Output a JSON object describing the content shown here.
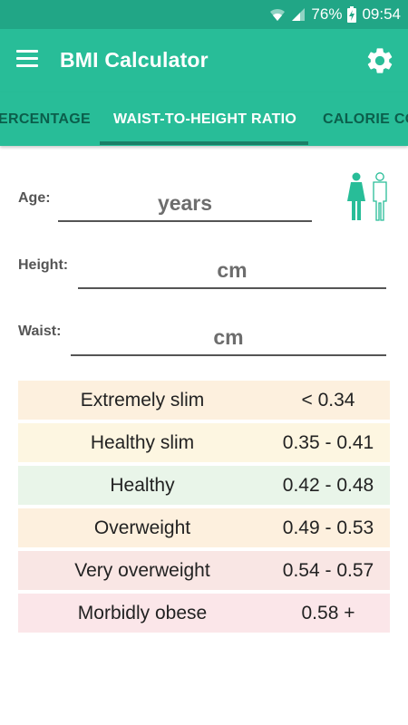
{
  "status_bar": {
    "battery": "76%",
    "time": "09:54"
  },
  "app_bar": {
    "title": "BMI Calculator"
  },
  "tabs": [
    {
      "label": "BODY FAT PERCENTAGE",
      "visible_label": "ERCENTAGE"
    },
    {
      "label": "WAIST-TO-HEIGHT RATIO",
      "visible_label": "WAIST-TO-HEIGHT RATIO",
      "selected": true
    },
    {
      "label": "CALORIE CO",
      "visible_label": "CALORIE CO"
    }
  ],
  "form": {
    "age": {
      "label": "Age:",
      "placeholder": "years",
      "value": ""
    },
    "height": {
      "label": "Height:",
      "placeholder": "cm",
      "value": ""
    },
    "waist": {
      "label": "Waist:",
      "placeholder": "cm",
      "value": ""
    }
  },
  "ratio_table": [
    {
      "category": "Extremely slim",
      "range": "< 0.34",
      "color": "#fdf0de"
    },
    {
      "category": "Healthy slim",
      "range": "0.35 - 0.41",
      "color": "#fdf6e1"
    },
    {
      "category": "Healthy",
      "range": "0.42 - 0.48",
      "color": "#e9f5e9"
    },
    {
      "category": "Overweight",
      "range": "0.49 - 0.53",
      "color": "#fdf0de"
    },
    {
      "category": "Very overweight",
      "range": "0.54 - 0.57",
      "color": "#f9e6e4"
    },
    {
      "category": "Morbidly obese",
      "range": "0.58 +",
      "color": "#fbe6e9"
    }
  ],
  "colors": {
    "primary": "#28bd98",
    "primary_dark": "#21a686",
    "tab_inactive": "#0b5e4b"
  },
  "icons": [
    "wifi-icon",
    "signal-icon",
    "battery-charging-icon",
    "menu-icon",
    "gear-icon",
    "gender-icon"
  ]
}
